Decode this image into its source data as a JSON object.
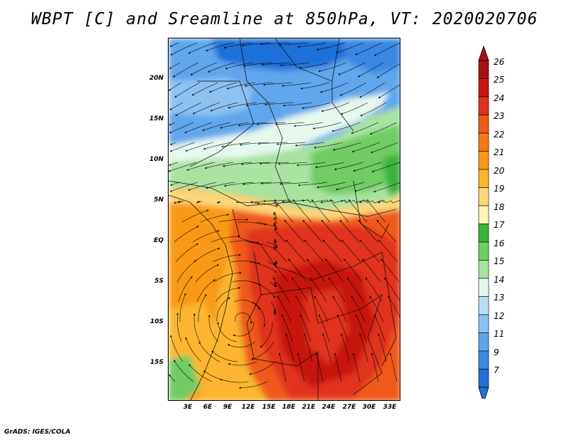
{
  "title": "WBPT [C] and Sreamline at 850hPa, VT: 2020020706",
  "credit": "GrADS: IGES/COLA",
  "lat_labels": [
    "20N",
    "15N",
    "10N",
    "5N",
    "EQ",
    "5S",
    "10S",
    "15S"
  ],
  "lon_labels": [
    "3E",
    "6E",
    "9E",
    "12E",
    "15E",
    "18E",
    "21E",
    "24E",
    "27E",
    "30E",
    "33E"
  ],
  "colorbar": {
    "labels": [
      "26",
      "25",
      "24",
      "23",
      "22",
      "21",
      "20",
      "19",
      "18",
      "17",
      "16",
      "15",
      "14",
      "13",
      "12",
      "11",
      "9",
      "7"
    ],
    "colors": [
      "#a50f15",
      "#c8170e",
      "#e0301e",
      "#ef5a1b",
      "#f57a14",
      "#f89a16",
      "#fbb52d",
      "#fdd77a",
      "#fff3b2",
      "#3bb33b",
      "#6fcd63",
      "#a8e3a0",
      "#e6f7ee",
      "#b8ddf7",
      "#8cc2f2",
      "#5ea6ec",
      "#3a88e2",
      "#1f6fd8"
    ]
  }
}
